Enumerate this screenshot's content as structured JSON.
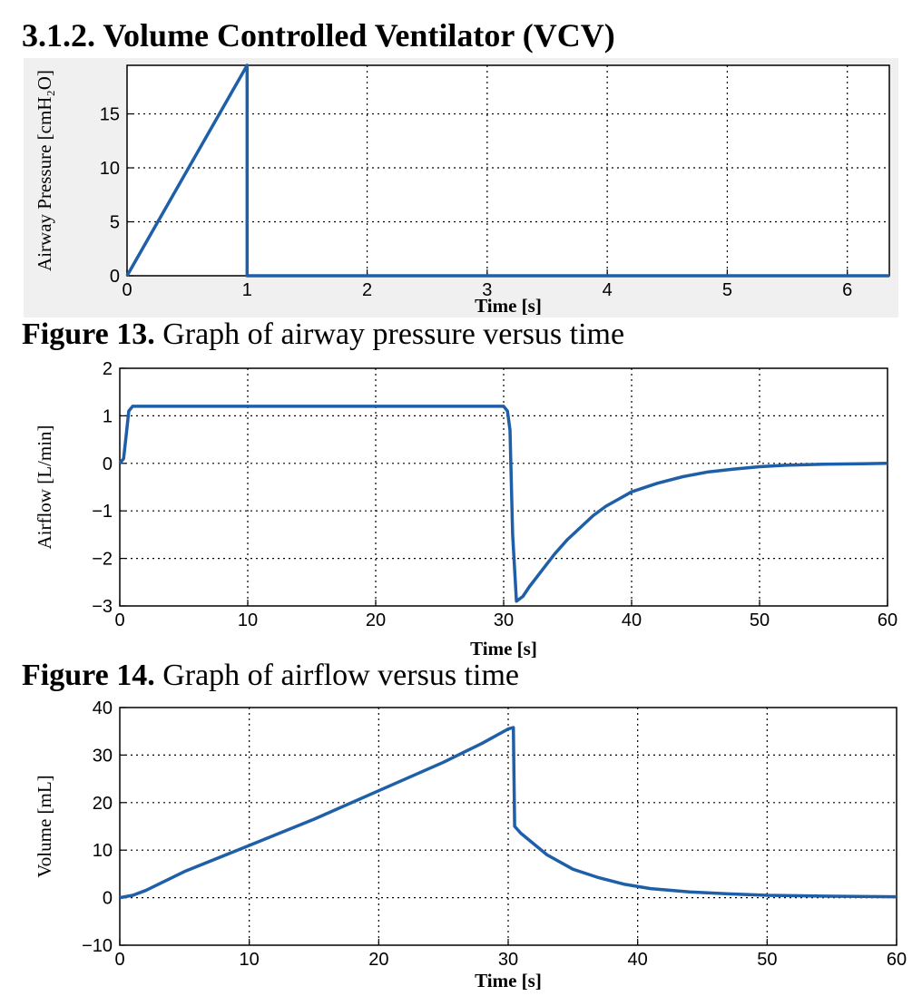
{
  "heading": "3.1.2. Volume Controlled Ventilator (VCV)",
  "captions": [
    {
      "label": "Figure 13.",
      "text": " Graph of airway pressure versus time"
    },
    {
      "label": "Figure 14.",
      "text": " Graph of airflow versus time"
    }
  ],
  "colors": {
    "line": "#1f5fa8",
    "grid": "#000000",
    "panel_bg": "#f0f0f0"
  },
  "chart_data": [
    {
      "type": "line",
      "xlabel": "Time [s]",
      "ylabel": "Airway Pressure [cmH₂O]",
      "xlim": [
        0,
        6.35
      ],
      "ylim": [
        0,
        19.5
      ],
      "xticks": [
        0,
        1,
        2,
        3,
        4,
        5,
        6
      ],
      "yticks": [
        0,
        5,
        10,
        15
      ],
      "grid": true,
      "series": [
        {
          "x": [
            0,
            1,
            1,
            6.35
          ],
          "y": [
            0,
            19.5,
            0,
            0
          ]
        }
      ]
    },
    {
      "type": "line",
      "xlabel": "Time [s]",
      "ylabel": "Airflow [L/min]",
      "xlim": [
        0,
        60
      ],
      "ylim": [
        -3,
        2
      ],
      "xticks": [
        0,
        10,
        20,
        30,
        40,
        50,
        60
      ],
      "yticks": [
        -3,
        -2,
        -1,
        0,
        1,
        2
      ],
      "grid": true,
      "series": [
        {
          "x": [
            0,
            0.3,
            0.5,
            0.7,
            1,
            30,
            30.3,
            30.5,
            30.7,
            31,
            31.5,
            32,
            33,
            34,
            35,
            36,
            37,
            38,
            39,
            40,
            42,
            44,
            46,
            48,
            50,
            52,
            55,
            58,
            60
          ],
          "y": [
            0,
            0.1,
            0.6,
            1.1,
            1.2,
            1.2,
            1.1,
            0.7,
            -1.5,
            -2.9,
            -2.8,
            -2.6,
            -2.25,
            -1.9,
            -1.6,
            -1.35,
            -1.1,
            -0.9,
            -0.75,
            -0.6,
            -0.42,
            -0.28,
            -0.18,
            -0.12,
            -0.07,
            -0.04,
            -0.02,
            -0.01,
            0
          ]
        }
      ]
    },
    {
      "type": "line",
      "xlabel": "Time [s]",
      "ylabel": "Volume [mL]",
      "xlim": [
        0,
        60
      ],
      "ylim": [
        -10,
        40
      ],
      "xticks": [
        0,
        10,
        20,
        30,
        40,
        50,
        60
      ],
      "yticks": [
        -10,
        0,
        10,
        20,
        30,
        40
      ],
      "grid": true,
      "series": [
        {
          "x": [
            0,
            1,
            2,
            5,
            10,
            15,
            20,
            25,
            28,
            30,
            30.4,
            30.5,
            31,
            33,
            35,
            37,
            39,
            41,
            44,
            47,
            50,
            55,
            60
          ],
          "y": [
            0,
            0.5,
            1.5,
            5.5,
            11,
            16.5,
            22.5,
            28.5,
            32.5,
            35.5,
            35.8,
            15,
            13.5,
            9,
            6,
            4.2,
            2.8,
            1.9,
            1.2,
            0.8,
            0.5,
            0.3,
            0.2
          ]
        }
      ]
    }
  ]
}
